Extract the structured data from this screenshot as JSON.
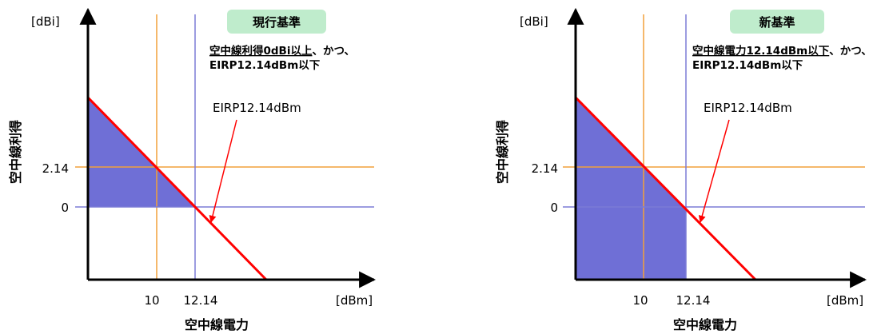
{
  "colors": {
    "orange_line": "#f2a03a",
    "blue_line": "#7b7bd6",
    "fill_region": "#6f6fd6",
    "red_line": "#ff0000",
    "badge_bg": "#bfeccc"
  },
  "panels": [
    {
      "badge": "現行基準",
      "note_underlined": "空中線利得0dBi以上",
      "note_rest": "、かつ、",
      "note_line2": "EIRP12.14dBm以下",
      "eirp_label": "EIRP12.14dBm",
      "y_unit": "[dBi]",
      "x_unit": "[dBm]",
      "y_title": "空中線利得",
      "x_title": "空中線電力",
      "tick_x1": "10",
      "tick_x2": "12.14",
      "tick_y1": "2.14",
      "tick_y2": "0"
    },
    {
      "badge": "新基準",
      "note_underlined": "空中線電力12.14dBm以下",
      "note_rest": "、かつ、",
      "note_line2": "EIRP12.14dBm以下",
      "eirp_label": "EIRP12.14dBm",
      "y_unit": "[dBi]",
      "x_unit": "[dBm]",
      "y_title": "空中線利得",
      "x_title": "空中線電力",
      "tick_x1": "10",
      "tick_x2": "12.14",
      "tick_y1": "2.14",
      "tick_y2": "0"
    }
  ]
}
